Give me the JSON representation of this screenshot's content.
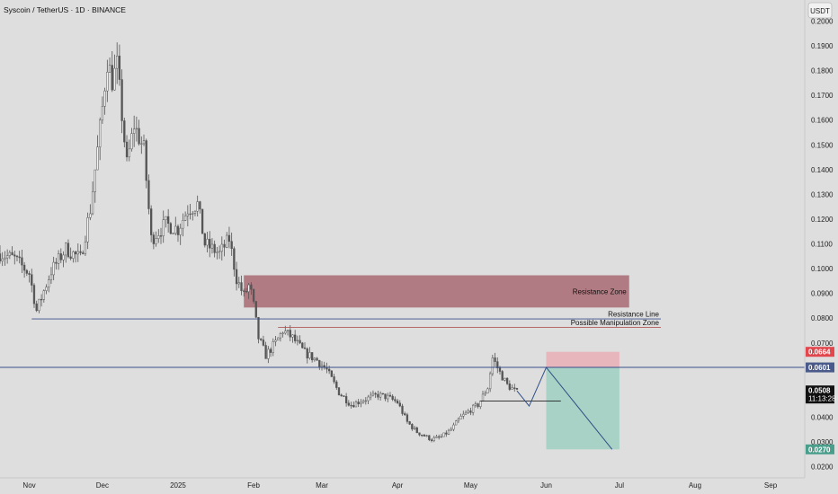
{
  "header": {
    "title": "Syscoin / TetherUS · 1D · BINANCE",
    "currency_button": "USDT"
  },
  "colors": {
    "background": "#dedede",
    "candle": "#555555",
    "resistance_zone": "#a05a63",
    "horizontal_line": "#3a4f8c",
    "manipulation_line": "#b05a5a",
    "projection_line": "#2e4f86",
    "target_zone": "#9fd0c1",
    "stop_zone": "#e9aeb6",
    "label_red": "#e1474d",
    "label_blue": "#4a5a8a",
    "label_black": "#111111",
    "label_teal": "#4a9e8c"
  },
  "chart_data": {
    "type": "candlestick",
    "title": "Syscoin / TetherUS · 1D · BINANCE",
    "xlabel": "",
    "ylabel": "",
    "x_range": [
      "2024-10-20",
      "2025-09-15"
    ],
    "ylim": [
      0.0155,
      0.2085
    ],
    "y_ticks": [
      0.2,
      0.19,
      0.18,
      0.17,
      0.16,
      0.15,
      0.14,
      0.13,
      0.12,
      0.11,
      0.1,
      0.09,
      0.08,
      0.07,
      0.06,
      0.05,
      0.04,
      0.03,
      0.02
    ],
    "y_tick_labels": [
      "0.2000",
      "0.1900",
      "0.1800",
      "0.1700",
      "0.1600",
      "0.1500",
      "0.1400",
      "0.1300",
      "0.1200",
      "0.1100",
      "0.1000",
      "0.0900",
      "0.0800",
      "0.0700",
      "0.0600",
      "0.0500",
      "0.0400",
      "0.0300",
      "0.0200"
    ],
    "x_ticks": [
      "2024-11-01",
      "2024-12-01",
      "2025-01-01",
      "2025-02-01",
      "2025-03-01",
      "2025-04-01",
      "2025-05-01",
      "2025-06-01",
      "2025-07-01",
      "2025-08-01",
      "2025-09-01"
    ],
    "x_tick_labels": [
      "Nov",
      "Dec",
      "2025",
      "Feb",
      "Mar",
      "Apr",
      "May",
      "Jun",
      "Jul",
      "Aug",
      "Sep"
    ],
    "price_path": [
      [
        "2024-10-20",
        0.106
      ],
      [
        "2024-10-26",
        0.104
      ],
      [
        "2024-11-01",
        0.098
      ],
      [
        "2024-11-04",
        0.083
      ],
      [
        "2024-11-10",
        0.099
      ],
      [
        "2024-11-16",
        0.108
      ],
      [
        "2024-11-22",
        0.104
      ],
      [
        "2024-11-26",
        0.124
      ],
      [
        "2024-11-29",
        0.148
      ],
      [
        "2024-12-01",
        0.165
      ],
      [
        "2024-12-03",
        0.184
      ],
      [
        "2024-12-05",
        0.176
      ],
      [
        "2024-12-07",
        0.182
      ],
      [
        "2024-12-11",
        0.142
      ],
      [
        "2024-12-14",
        0.158
      ],
      [
        "2024-12-18",
        0.148
      ],
      [
        "2024-12-21",
        0.112
      ],
      [
        "2024-12-27",
        0.118
      ],
      [
        "2025-01-01",
        0.116
      ],
      [
        "2025-01-05",
        0.124
      ],
      [
        "2025-01-09",
        0.126
      ],
      [
        "2025-01-12",
        0.11
      ],
      [
        "2025-01-18",
        0.106
      ],
      [
        "2025-01-22",
        0.112
      ],
      [
        "2025-01-25",
        0.096
      ],
      [
        "2025-01-28",
        0.089
      ],
      [
        "2025-01-30",
        0.093
      ],
      [
        "2025-01-31",
        0.09
      ],
      [
        "2025-02-01",
        0.085
      ],
      [
        "2025-02-03",
        0.072
      ],
      [
        "2025-02-06",
        0.065
      ],
      [
        "2025-02-10",
        0.07
      ],
      [
        "2025-02-13",
        0.075
      ],
      [
        "2025-02-17",
        0.072
      ],
      [
        "2025-02-22",
        0.066
      ],
      [
        "2025-02-27",
        0.063
      ],
      [
        "2025-03-03",
        0.059
      ],
      [
        "2025-03-08",
        0.05
      ],
      [
        "2025-03-13",
        0.045
      ],
      [
        "2025-03-18",
        0.047
      ],
      [
        "2025-03-24",
        0.049
      ],
      [
        "2025-03-28",
        0.048
      ],
      [
        "2025-04-01",
        0.046
      ],
      [
        "2025-04-05",
        0.038
      ],
      [
        "2025-04-09",
        0.034
      ],
      [
        "2025-04-15",
        0.031
      ],
      [
        "2025-04-19",
        0.032
      ],
      [
        "2025-04-23",
        0.035
      ],
      [
        "2025-04-27",
        0.04
      ],
      [
        "2025-05-01",
        0.043
      ],
      [
        "2025-05-04",
        0.045
      ],
      [
        "2025-05-08",
        0.052
      ],
      [
        "2025-05-10",
        0.064
      ],
      [
        "2025-05-13",
        0.058
      ],
      [
        "2025-05-16",
        0.053
      ],
      [
        "2025-05-20",
        0.05
      ]
    ],
    "series": [
      {
        "name": "Resistance Zone",
        "type": "zone",
        "x": [
          "2025-01-28",
          "2025-07-05"
        ],
        "y": [
          0.0843,
          0.0973
        ]
      },
      {
        "name": "Resistance Line",
        "type": "hline",
        "x": [
          "2024-11-02",
          "2025-07-18"
        ],
        "y": 0.0797
      },
      {
        "name": "Possible Manipulation Zone",
        "type": "hline",
        "x": [
          "2025-02-11",
          "2025-07-18"
        ],
        "y": 0.0763
      },
      {
        "name": "",
        "type": "hline",
        "x": [
          "2024-10-20",
          "2025-09-15"
        ],
        "y": 0.0601
      },
      {
        "name": "",
        "type": "hline",
        "x": [
          "2025-05-05",
          "2025-06-07"
        ],
        "y": 0.0465
      },
      {
        "name": "",
        "type": "projection",
        "points": [
          [
            "2025-05-20",
            0.0506
          ],
          [
            "2025-05-25",
            0.0445
          ],
          [
            "2025-06-01",
            0.0601
          ],
          [
            "2025-06-28",
            0.027
          ]
        ]
      },
      {
        "name": "",
        "type": "zone",
        "x": [
          "2025-06-01",
          "2025-07-01"
        ],
        "y": [
          0.0601,
          0.0664
        ]
      },
      {
        "name": "",
        "type": "zone",
        "x": [
          "2025-06-01",
          "2025-07-01"
        ],
        "y": [
          0.027,
          0.0601
        ]
      }
    ],
    "price_labels": [
      {
        "value": "0.0664",
        "y": 0.0664,
        "color": "red"
      },
      {
        "value": "0.0601",
        "y": 0.0601,
        "color": "blue"
      },
      {
        "value": "0.0508",
        "sub": "11:13:28",
        "y": 0.0508,
        "color": "black"
      },
      {
        "value": "0.0270",
        "y": 0.027,
        "color": "teal"
      }
    ],
    "annotations": [
      "Resistance Zone",
      "Resistance Line",
      "Possible Manipulation Zone"
    ],
    "grid": false,
    "legend": "none"
  }
}
